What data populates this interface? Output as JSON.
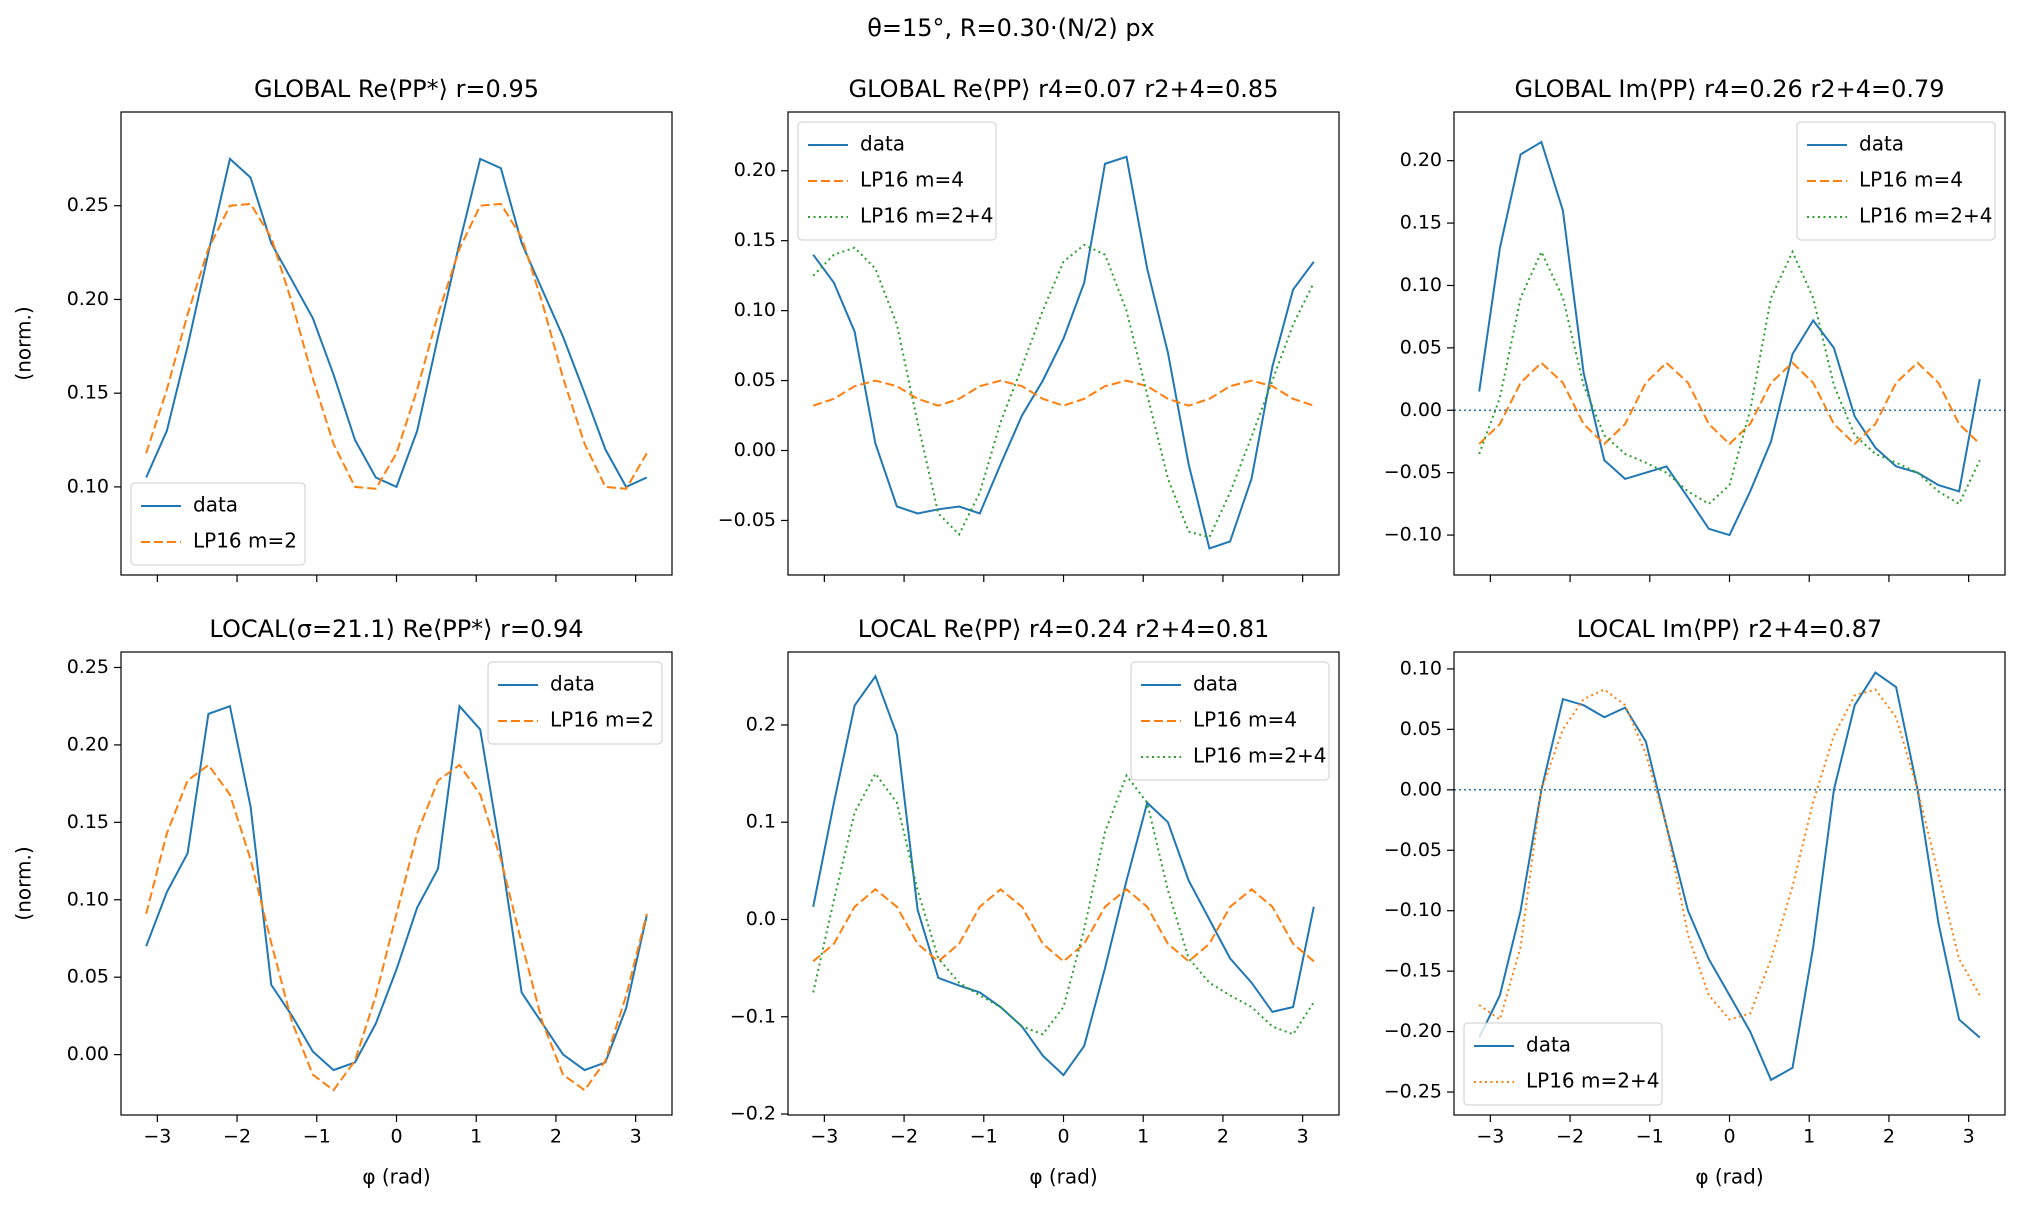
{
  "suptitle": "θ=15°,  R=0.30·(N/2) px",
  "chart_data": [
    {
      "type": "line",
      "title": "GLOBAL Re⟨PP*⟩  r=0.95",
      "ylabel": "(norm.)",
      "x": [
        -3.14,
        -2.88,
        -2.62,
        -2.36,
        -2.09,
        -1.83,
        -1.57,
        -1.31,
        -1.05,
        -0.79,
        -0.52,
        -0.26,
        0,
        0.26,
        0.52,
        0.79,
        1.05,
        1.31,
        1.57,
        1.83,
        2.09,
        2.36,
        2.62,
        2.88,
        3.14
      ],
      "series": [
        {
          "name": "data",
          "color": "#1f77b4",
          "dash": "solid",
          "values": [
            0.105,
            0.13,
            0.175,
            0.225,
            0.275,
            0.265,
            0.23,
            0.21,
            0.19,
            0.16,
            0.125,
            0.105,
            0.1,
            0.13,
            0.18,
            0.23,
            0.275,
            0.27,
            0.23,
            0.205,
            0.18,
            0.15,
            0.12,
            0.1,
            0.105
          ]
        },
        {
          "name": "LP16 m=2",
          "color": "#ff7f0e",
          "dash": "dashed",
          "values": [
            0.118,
            0.152,
            0.192,
            0.227,
            0.25,
            0.251,
            0.233,
            0.198,
            0.158,
            0.123,
            0.1,
            0.099,
            0.118,
            0.152,
            0.192,
            0.227,
            0.25,
            0.251,
            0.233,
            0.198,
            0.158,
            0.123,
            0.1,
            0.099,
            0.118
          ]
        }
      ],
      "xlim": [
        -3.456,
        3.456
      ],
      "ylim": [
        0.053,
        0.3
      ],
      "xticks": [
        {
          "value": -3,
          "label": "−3"
        },
        {
          "value": -2,
          "label": "−2"
        },
        {
          "value": -1,
          "label": "−1"
        },
        0,
        1,
        2,
        3
      ],
      "xtick_labels": false,
      "yticks": [
        {
          "value": 0.1,
          "label": "0.10"
        },
        0.15,
        {
          "value": 0.2,
          "label": "0.20"
        },
        0.25
      ],
      "legend": "lower left"
    },
    {
      "type": "line",
      "title": "GLOBAL Re⟨PP⟩  r4=0.07  r2+4=0.85",
      "x": [
        -3.14,
        -2.88,
        -2.62,
        -2.36,
        -2.09,
        -1.83,
        -1.57,
        -1.31,
        -1.05,
        -0.79,
        -0.52,
        -0.26,
        0,
        0.26,
        0.52,
        0.79,
        1.05,
        1.31,
        1.57,
        1.83,
        2.09,
        2.36,
        2.62,
        2.88,
        3.14
      ],
      "series": [
        {
          "name": "data",
          "color": "#1f77b4",
          "dash": "solid",
          "values": [
            0.14,
            0.12,
            0.085,
            0.005,
            -0.04,
            -0.045,
            -0.042,
            -0.04,
            -0.045,
            -0.01,
            0.025,
            0.05,
            0.08,
            0.12,
            0.205,
            0.21,
            0.13,
            0.07,
            -0.01,
            -0.07,
            -0.065,
            -0.02,
            0.06,
            0.115,
            0.135
          ]
        },
        {
          "name": "LP16 m=4",
          "color": "#ff7f0e",
          "dash": "dashed",
          "values": [
            0.032,
            0.037,
            0.046,
            0.05,
            0.046,
            0.037,
            0.032,
            0.037,
            0.046,
            0.05,
            0.046,
            0.037,
            0.032,
            0.037,
            0.046,
            0.05,
            0.046,
            0.037,
            0.032,
            0.037,
            0.046,
            0.05,
            0.046,
            0.037,
            0.032
          ]
        },
        {
          "name": "LP16 m=2+4",
          "color": "#2ca02c",
          "dash": "dotted",
          "values": [
            0.125,
            0.14,
            0.145,
            0.13,
            0.09,
            0.02,
            -0.045,
            -0.06,
            -0.03,
            0.02,
            0.06,
            0.1,
            0.135,
            0.147,
            0.14,
            0.1,
            0.04,
            -0.02,
            -0.058,
            -0.062,
            -0.03,
            0.01,
            0.05,
            0.09,
            0.12
          ]
        }
      ],
      "xlim": [
        -3.456,
        3.456
      ],
      "ylim": [
        -0.089,
        0.242
      ],
      "xticks": [
        {
          "value": -3,
          "label": "−3"
        },
        {
          "value": -2,
          "label": "−2"
        },
        {
          "value": -1,
          "label": "−1"
        },
        0,
        1,
        2,
        3
      ],
      "xtick_labels": false,
      "yticks": [
        {
          "value": -0.05,
          "label": "−0.05"
        },
        {
          "value": 0,
          "label": "0.00"
        },
        0.05,
        {
          "value": 0.1,
          "label": "0.10"
        },
        0.15,
        {
          "value": 0.2,
          "label": "0.20"
        }
      ],
      "legend": "upper left"
    },
    {
      "type": "line",
      "title": "GLOBAL Im⟨PP⟩  r4=0.26  r2+4=0.79",
      "x": [
        -3.14,
        -2.88,
        -2.62,
        -2.36,
        -2.09,
        -1.83,
        -1.57,
        -1.31,
        -1.05,
        -0.79,
        -0.52,
        -0.26,
        0,
        0.26,
        0.52,
        0.79,
        1.05,
        1.31,
        1.57,
        1.83,
        2.09,
        2.36,
        2.62,
        2.88,
        3.14
      ],
      "series": [
        {
          "name": "data",
          "color": "#1f77b4",
          "dash": "solid",
          "values": [
            0.015,
            0.13,
            0.205,
            0.215,
            0.16,
            0.03,
            -0.04,
            -0.055,
            -0.05,
            -0.045,
            -0.07,
            -0.095,
            -0.1,
            -0.065,
            -0.025,
            0.045,
            0.072,
            0.05,
            -0.005,
            -0.03,
            -0.045,
            -0.05,
            -0.06,
            -0.065,
            0.025
          ]
        },
        {
          "name": "LP16 m=4",
          "color": "#ff7f0e",
          "dash": "dashed",
          "values": [
            -0.027,
            -0.011,
            0.022,
            0.038,
            0.022,
            -0.011,
            -0.027,
            -0.011,
            0.022,
            0.038,
            0.022,
            -0.011,
            -0.027,
            -0.011,
            0.022,
            0.038,
            0.022,
            -0.011,
            -0.027,
            -0.011,
            0.022,
            0.038,
            0.022,
            -0.011,
            -0.027
          ]
        },
        {
          "name": "LP16 m=2+4",
          "color": "#2ca02c",
          "dash": "dotted",
          "values": [
            -0.035,
            0.01,
            0.09,
            0.127,
            0.09,
            0.02,
            -0.02,
            -0.035,
            -0.042,
            -0.05,
            -0.065,
            -0.075,
            -0.06,
            0.0,
            0.09,
            0.127,
            0.09,
            0.02,
            -0.02,
            -0.035,
            -0.042,
            -0.05,
            -0.065,
            -0.075,
            -0.04
          ]
        }
      ],
      "xlim": [
        -3.456,
        3.456
      ],
      "ylim": [
        -0.132,
        0.239
      ],
      "hline": 0,
      "xticks": [
        {
          "value": -3,
          "label": "−3"
        },
        {
          "value": -2,
          "label": "−2"
        },
        {
          "value": -1,
          "label": "−1"
        },
        0,
        1,
        2,
        3
      ],
      "xtick_labels": false,
      "yticks": [
        {
          "value": -0.1,
          "label": "−0.10"
        },
        {
          "value": -0.05,
          "label": "−0.05"
        },
        {
          "value": 0,
          "label": "0.00"
        },
        0.05,
        {
          "value": 0.1,
          "label": "0.10"
        },
        0.15,
        {
          "value": 0.2,
          "label": "0.20"
        }
      ],
      "legend": "upper right"
    },
    {
      "type": "line",
      "title": "LOCAL(σ=21.1) Re⟨PP*⟩  r=0.94",
      "ylabel": "(norm.)",
      "xlabel": "φ (rad)",
      "x": [
        -3.14,
        -2.88,
        -2.62,
        -2.36,
        -2.09,
        -1.83,
        -1.57,
        -1.31,
        -1.05,
        -0.79,
        -0.52,
        -0.26,
        0,
        0.26,
        0.52,
        0.79,
        1.05,
        1.31,
        1.57,
        1.83,
        2.09,
        2.36,
        2.62,
        2.88,
        3.14
      ],
      "series": [
        {
          "name": "data",
          "color": "#1f77b4",
          "dash": "solid",
          "values": [
            0.07,
            0.105,
            0.13,
            0.22,
            0.225,
            0.16,
            0.045,
            0.025,
            0.002,
            -0.01,
            -0.005,
            0.02,
            0.055,
            0.095,
            0.12,
            0.225,
            0.21,
            0.13,
            0.04,
            0.02,
            0.0,
            -0.01,
            -0.005,
            0.03,
            0.09
          ]
        },
        {
          "name": "LP16 m=2",
          "color": "#ff7f0e",
          "dash": "dashed",
          "values": [
            0.091,
            0.143,
            0.177,
            0.187,
            0.168,
            0.126,
            0.072,
            0.021,
            -0.013,
            -0.023,
            -0.004,
            0.038,
            0.091,
            0.143,
            0.177,
            0.187,
            0.168,
            0.126,
            0.072,
            0.021,
            -0.013,
            -0.023,
            -0.004,
            0.038,
            0.091
          ]
        }
      ],
      "xlim": [
        -3.456,
        3.456
      ],
      "ylim": [
        -0.039,
        0.26
      ],
      "xticks": [
        {
          "value": -3,
          "label": "−3"
        },
        {
          "value": -2,
          "label": "−2"
        },
        {
          "value": -1,
          "label": "−1"
        },
        0,
        1,
        2,
        3
      ],
      "xtick_labels": true,
      "yticks": [
        {
          "value": 0,
          "label": "0.00"
        },
        0.05,
        {
          "value": 0.1,
          "label": "0.10"
        },
        0.15,
        {
          "value": 0.2,
          "label": "0.20"
        },
        0.25
      ],
      "legend": "upper right"
    },
    {
      "type": "line",
      "title": "LOCAL Re⟨PP⟩  r4=0.24  r2+4=0.81",
      "xlabel": "φ (rad)",
      "x": [
        -3.14,
        -2.88,
        -2.62,
        -2.36,
        -2.09,
        -1.83,
        -1.57,
        -1.31,
        -1.05,
        -0.79,
        -0.52,
        -0.26,
        0,
        0.26,
        0.52,
        0.79,
        1.05,
        1.31,
        1.57,
        1.83,
        2.09,
        2.36,
        2.62,
        2.88,
        3.14
      ],
      "series": [
        {
          "name": "data",
          "color": "#1f77b4",
          "dash": "solid",
          "values": [
            0.013,
            0.12,
            0.22,
            0.25,
            0.19,
            0.01,
            -0.06,
            -0.068,
            -0.075,
            -0.09,
            -0.11,
            -0.14,
            -0.16,
            -0.13,
            -0.05,
            0.04,
            0.12,
            0.1,
            0.04,
            0.0,
            -0.04,
            -0.065,
            -0.095,
            -0.09,
            0.013
          ]
        },
        {
          "name": "LP16 m=4",
          "color": "#ff7f0e",
          "dash": "dashed",
          "values": [
            -0.043,
            -0.025,
            0.013,
            0.031,
            0.013,
            -0.025,
            -0.043,
            -0.025,
            0.013,
            0.031,
            0.013,
            -0.025,
            -0.043,
            -0.025,
            0.013,
            0.031,
            0.013,
            -0.025,
            -0.043,
            -0.025,
            0.013,
            0.031,
            0.013,
            -0.025,
            -0.043
          ]
        },
        {
          "name": "LP16 m=2+4",
          "color": "#2ca02c",
          "dash": "dotted",
          "values": [
            -0.075,
            0.02,
            0.11,
            0.15,
            0.12,
            0.03,
            -0.04,
            -0.065,
            -0.078,
            -0.09,
            -0.11,
            -0.118,
            -0.09,
            -0.01,
            0.09,
            0.148,
            0.12,
            0.03,
            -0.04,
            -0.065,
            -0.078,
            -0.09,
            -0.11,
            -0.118,
            -0.085
          ]
        }
      ],
      "xlim": [
        -3.456,
        3.456
      ],
      "ylim": [
        -0.201,
        0.275
      ],
      "xticks": [
        {
          "value": -3,
          "label": "−3"
        },
        {
          "value": -2,
          "label": "−2"
        },
        {
          "value": -1,
          "label": "−1"
        },
        0,
        1,
        2,
        3
      ],
      "xtick_labels": true,
      "yticks": [
        {
          "value": -0.2,
          "label": "−0.2"
        },
        {
          "value": -0.1,
          "label": "−0.1"
        },
        {
          "value": 0,
          "label": "0.0"
        },
        0.1,
        0.2
      ],
      "legend": "upper right"
    },
    {
      "type": "line",
      "title": "LOCAL Im⟨PP⟩  r2+4=0.87",
      "xlabel": "φ (rad)",
      "x": [
        -3.14,
        -2.88,
        -2.62,
        -2.36,
        -2.09,
        -1.83,
        -1.57,
        -1.31,
        -1.05,
        -0.79,
        -0.52,
        -0.26,
        0,
        0.26,
        0.52,
        0.79,
        1.05,
        1.31,
        1.57,
        1.83,
        2.09,
        2.36,
        2.62,
        2.88,
        3.14
      ],
      "series": [
        {
          "name": "data",
          "color": "#1f77b4",
          "dash": "solid",
          "values": [
            -0.205,
            -0.17,
            -0.1,
            0.0,
            0.075,
            0.07,
            0.06,
            0.068,
            0.04,
            -0.03,
            -0.1,
            -0.14,
            -0.17,
            -0.2,
            -0.24,
            -0.23,
            -0.13,
            0.0,
            0.07,
            0.097,
            0.085,
            0.0,
            -0.11,
            -0.19,
            -0.205
          ]
        },
        {
          "name": "LP16 m=2+4",
          "color": "#ff7f0e",
          "dash": "dotted",
          "values": [
            -0.178,
            -0.19,
            -0.13,
            0.0,
            0.05,
            0.075,
            0.083,
            0.07,
            0.03,
            -0.03,
            -0.12,
            -0.17,
            -0.19,
            -0.185,
            -0.14,
            -0.08,
            -0.01,
            0.045,
            0.078,
            0.083,
            0.06,
            0.0,
            -0.07,
            -0.14,
            -0.17
          ]
        }
      ],
      "xlim": [
        -3.456,
        3.456
      ],
      "ylim": [
        -0.269,
        0.114
      ],
      "hline": 0,
      "xticks": [
        {
          "value": -3,
          "label": "−3"
        },
        {
          "value": -2,
          "label": "−2"
        },
        {
          "value": -1,
          "label": "−1"
        },
        0,
        1,
        2,
        3
      ],
      "xtick_labels": true,
      "yticks": [
        {
          "value": -0.25,
          "label": "−0.25"
        },
        {
          "value": -0.2,
          "label": "−0.20"
        },
        {
          "value": -0.15,
          "label": "−0.15"
        },
        {
          "value": -0.1,
          "label": "−0.10"
        },
        {
          "value": -0.05,
          "label": "−0.05"
        },
        {
          "value": 0,
          "label": "0.00"
        },
        0.05,
        {
          "value": 0.1,
          "label": "0.10"
        }
      ],
      "legend": "lower left"
    }
  ]
}
